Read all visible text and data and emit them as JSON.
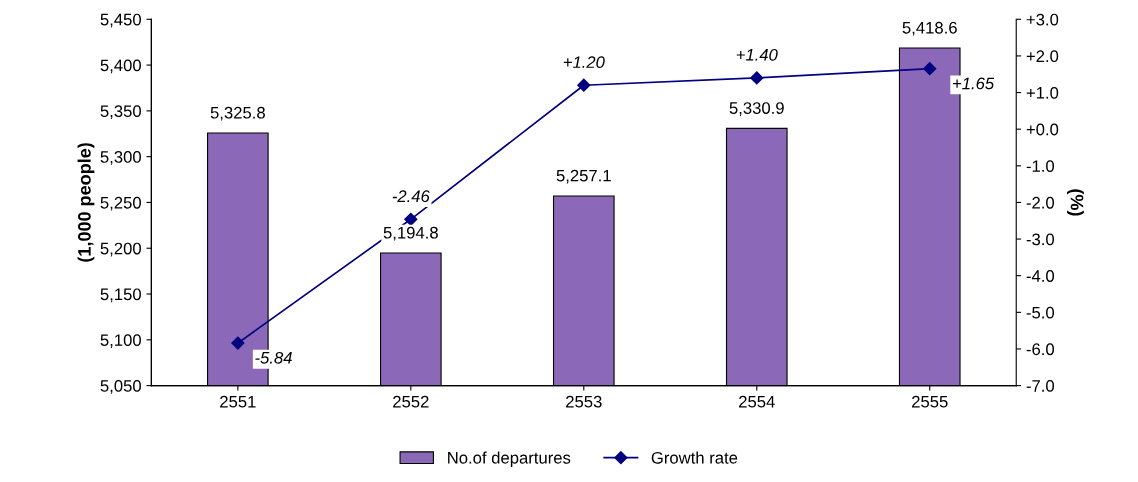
{
  "chart_data": {
    "type": "bar",
    "categories": [
      "2551",
      "2552",
      "2553",
      "2554",
      "2555"
    ],
    "ylabel": "(1,000 people)",
    "y2label": "(%)",
    "ylim": [
      5050,
      5450
    ],
    "yticks": [
      {
        "value": 5050,
        "label": "5,050"
      },
      {
        "value": 5100,
        "label": "5,100"
      },
      {
        "value": 5150,
        "label": "5,150"
      },
      {
        "value": 5200,
        "label": "5,200"
      },
      {
        "value": 5250,
        "label": "5,250"
      },
      {
        "value": 5300,
        "label": "5,300"
      },
      {
        "value": 5350,
        "label": "5,350"
      },
      {
        "value": 5400,
        "label": "5,400"
      },
      {
        "value": 5450,
        "label": "5,450"
      }
    ],
    "y2lim": [
      -7,
      3
    ],
    "y2ticks": [
      {
        "value": -7,
        "label": "-7.0"
      },
      {
        "value": -6,
        "label": "-6.0"
      },
      {
        "value": -5,
        "label": "-5.0"
      },
      {
        "value": -4,
        "label": "-4.0"
      },
      {
        "value": -3,
        "label": "-3.0"
      },
      {
        "value": -2,
        "label": "-2.0"
      },
      {
        "value": -1,
        "label": "-1.0"
      },
      {
        "value": 0,
        "label": "+0.0"
      },
      {
        "value": 1,
        "label": "+1.0"
      },
      {
        "value": 2,
        "label": "+2.0"
      },
      {
        "value": 3,
        "label": "+3.0"
      }
    ],
    "series": [
      {
        "name": "No.of departures",
        "color": "#8c68b8",
        "values": [
          5325.8,
          5194.8,
          5257.1,
          5330.9,
          5418.6
        ],
        "value_labels": [
          "5,325.8",
          "5,194.8",
          "5,257.1",
          "5,330.9",
          "5,418.6"
        ]
      },
      {
        "name": "Growth rate",
        "type": "line",
        "axis": "y2",
        "color": "#000080",
        "marker": "diamond",
        "values": [
          -5.84,
          -2.46,
          1.2,
          1.4,
          1.65
        ],
        "value_labels": [
          "-5.84",
          "-2.46",
          "+1.20",
          "+1.40",
          "+1.65"
        ]
      }
    ],
    "grid": false,
    "legend": "bottom"
  }
}
